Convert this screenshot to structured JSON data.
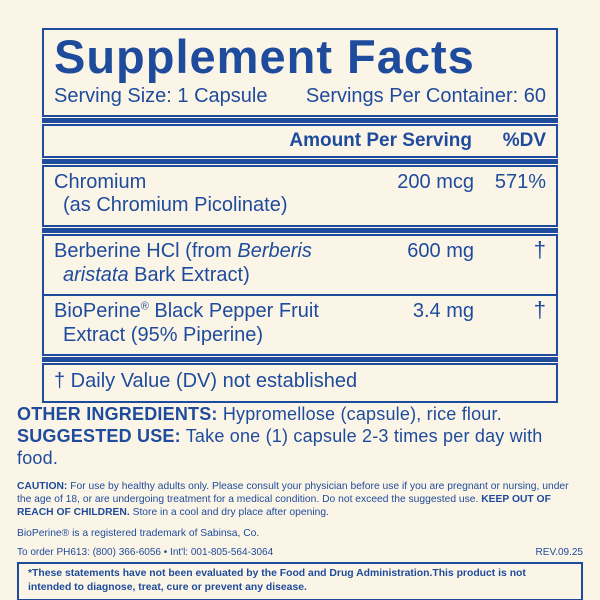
{
  "colors": {
    "brand_blue": "#1E4B9C",
    "background_cream": "#FBF5E7"
  },
  "facts": {
    "title": "Supplement Facts",
    "serving_size": "Serving Size: 1 Capsule",
    "servings_per_container": "Servings Per Container: 60",
    "columns": {
      "amount": "Amount Per Serving",
      "dv": "%DV"
    },
    "rows": [
      {
        "lines": [
          [
            {
              "t": "Chromium"
            }
          ],
          [
            {
              "t": "(as Chromium Picolinate)"
            }
          ]
        ],
        "amount": "200 mcg",
        "dv": "571%"
      },
      {
        "lines": [
          [
            {
              "t": "Berberine HCl (from "
            },
            {
              "t": "Berberis",
              "italic": true
            }
          ],
          [
            {
              "t": "aristata",
              "italic": true
            },
            {
              "t": " Bark Extract)"
            }
          ]
        ],
        "amount": "600 mg",
        "dv": "†"
      },
      {
        "lines": [
          [
            {
              "t": "BioPerine"
            },
            {
              "t": "®",
              "sup": true
            },
            {
              "t": " Black Pepper Fruit"
            }
          ],
          [
            {
              "t": "Extract (95% Piperine)"
            }
          ]
        ],
        "amount": "3.4 mg",
        "dv": "†"
      }
    ],
    "footnote": "† Daily Value (DV) not established"
  },
  "other_ingredients": {
    "label": "OTHER INGREDIENTS:",
    "text": "Hypromellose (capsule), rice flour."
  },
  "suggested_use": {
    "label": "SUGGESTED USE:",
    "text": "Take one (1) capsule 2-3 times per day with food."
  },
  "caution": {
    "label": "CAUTION:",
    "text1": "For use by healthy adults only. Please consult your physician before use if you are pregnant or nursing, under the age of 18, or are undergoing treatment for a medical condition. Do not exceed the suggested use.",
    "label2": "KEEP OUT OF REACH OF CHILDREN.",
    "text2": "Store in a cool and dry place after opening."
  },
  "trademark": "BioPerine® is a registered trademark of Sabinsa, Co.",
  "order_info": "To order PH613: (800) 366-6056 • Int'l: 001-805-564-3064",
  "revision": "REV.09.25",
  "disclaimer": "*These statements have not been evaluated by the Food and Drug Administration.This product is not intended to diagnose, treat, cure or prevent any disease."
}
